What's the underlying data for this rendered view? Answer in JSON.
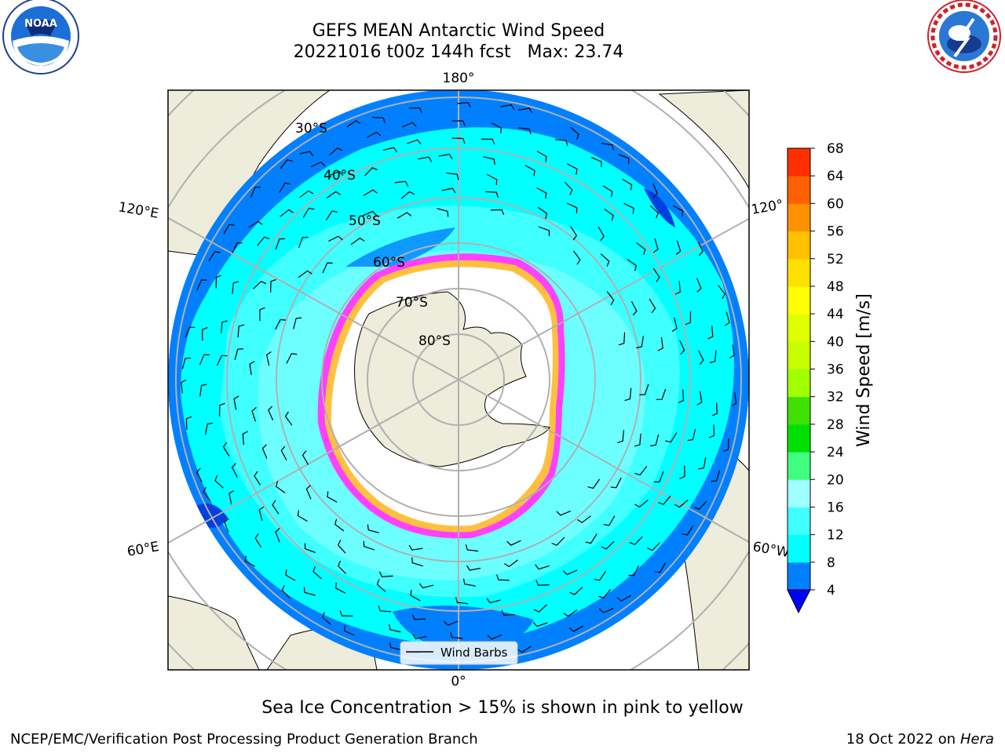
{
  "header": {
    "title_line1": "GEFS MEAN Antarctic Wind Speed",
    "title_line2": "20221016 t00z 144h fcst   Max: 23.74"
  },
  "map": {
    "lon_labels": {
      "top": "180°",
      "upper_left": "120°E",
      "upper_right": "120°",
      "lower_left": "60°E",
      "lower_right": "60°W",
      "bottom": "0°"
    },
    "lat_labels": [
      "30°S",
      "40°S",
      "50°S",
      "60°S",
      "70°S",
      "80°S"
    ],
    "legend_label": "Wind Barbs",
    "colors": {
      "land": "#eeecdb",
      "ocean_low": "#0080ff",
      "ocean_mid": "#00ffff",
      "ocean_high": "#80ffff",
      "sea_ice": "#ff40ff",
      "sea_ice_edge": "#ffc040"
    }
  },
  "colorbar": {
    "label": "Wind Speed [m/s]",
    "ticks": [
      "4",
      "8",
      "12",
      "16",
      "20",
      "24",
      "28",
      "32",
      "36",
      "40",
      "44",
      "48",
      "52",
      "56",
      "60",
      "64",
      "68"
    ],
    "colors": [
      "#0080ff",
      "#00ffff",
      "#40ffff",
      "#a0ffff",
      "#40ff80",
      "#00e000",
      "#40e000",
      "#a0ff00",
      "#c8ff00",
      "#e0ff00",
      "#ffff00",
      "#ffe000",
      "#ffc000",
      "#ff9000",
      "#ff6000",
      "#ff3000",
      "#ff0000"
    ],
    "extend_color": "#0000ff"
  },
  "caption": "Sea Ice Concentration > 15% is shown in pink to yellow",
  "footer": {
    "left": "NCEP/EMC/Verification Post Processing Product Generation Branch",
    "right_prefix": "18 Oct 2022 on ",
    "right_host": "Hera"
  },
  "logos": {
    "noaa_text": "NOAA",
    "noaa_ring_top": "NATIONAL OCEANIC AND ATMOSPHERIC ADMINISTRATION",
    "noaa_ring_bottom": "U.S. DEPARTMENT OF COMMERCE",
    "nws_ring": "NATIONAL WEATHER SERVICE"
  }
}
